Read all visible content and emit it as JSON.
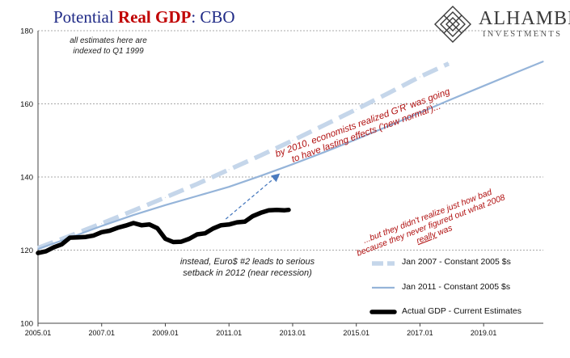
{
  "header": {
    "title_prefix": "Potential",
    "title_highlight": "Real GDP",
    "title_suffix": ":  CBO"
  },
  "brand": {
    "name": "ALHAMBRA",
    "subtitle": "INVESTMENTS",
    "icon": "alhambra-lattice-icon"
  },
  "annotations": {
    "indexed_note": [
      "all estimates here are",
      "indexed to Q1 1999"
    ],
    "setback_note": [
      "instead, Euro$ #2 leads to serious",
      "setback in 2012 (near recession)"
    ],
    "realized_note": [
      "by 2010, economists realized G'R' was going",
      "to have lasting effects ('new normal')..."
    ],
    "didnt_realize_note": [
      "...but they didn't realize just how bad",
      "because they never figured out what 2008"
    ],
    "really_word": "really",
    "was_word": " was"
  },
  "colors": {
    "title_blue": "#1f2a86",
    "title_red": "#c00000",
    "jan2007": "#c5d6ea",
    "jan2011": "#95b4d9",
    "actual": "#000000",
    "annotation_red": "#b01010",
    "arrow": "#4a7bbf"
  },
  "chart_data": {
    "type": "line",
    "xlabel": "",
    "ylabel": "",
    "xlim": [
      2005.0,
      2020.875
    ],
    "ylim": [
      100,
      180
    ],
    "yticks": [
      100,
      120,
      140,
      160,
      180
    ],
    "xticks": [
      {
        "value": 2005.0,
        "label": "2005.01"
      },
      {
        "value": 2007.0,
        "label": "2007.01"
      },
      {
        "value": 2009.0,
        "label": "2009.01"
      },
      {
        "value": 2011.0,
        "label": "2011.01"
      },
      {
        "value": 2013.0,
        "label": "2013.01"
      },
      {
        "value": 2015.0,
        "label": "2015.01"
      },
      {
        "value": 2017.0,
        "label": "2017.01"
      },
      {
        "value": 2019.0,
        "label": "2019.01"
      }
    ],
    "grid": true,
    "legend_position": "bottom-right",
    "series": [
      {
        "name": "Jan 2007 - Constant 2005 $s",
        "style": "dashed",
        "x": [
          2005.0,
          2006.0,
          2007.0,
          2008.0,
          2009.0,
          2010.0,
          2011.0,
          2012.0,
          2013.0,
          2014.0,
          2015.0,
          2016.0,
          2017.0,
          2017.9
        ],
        "y": [
          120.6,
          123.9,
          127.3,
          130.8,
          134.4,
          138.1,
          142.0,
          145.9,
          150.0,
          154.2,
          158.5,
          162.9,
          167.4,
          171.0
        ]
      },
      {
        "name": "Jan 2011 - Constant 2005 $s",
        "style": "solid",
        "x": [
          2005.0,
          2006.0,
          2007.0,
          2008.0,
          2009.0,
          2010.0,
          2011.0,
          2012.0,
          2013.0,
          2014.0,
          2015.0,
          2016.0,
          2017.0,
          2018.0,
          2019.0,
          2020.0,
          2020.875
        ],
        "y": [
          120.3,
          123.4,
          126.6,
          129.6,
          132.3,
          134.8,
          137.3,
          140.3,
          143.5,
          146.8,
          150.3,
          153.9,
          157.6,
          161.3,
          164.9,
          168.5,
          171.6
        ]
      },
      {
        "name": "Actual GDP - Current Estimates",
        "style": "thick",
        "x": [
          2005.0,
          2005.25,
          2005.5,
          2005.75,
          2006.0,
          2006.25,
          2006.5,
          2006.75,
          2007.0,
          2007.25,
          2007.5,
          2007.75,
          2008.0,
          2008.25,
          2008.5,
          2008.75,
          2009.0,
          2009.25,
          2009.5,
          2009.75,
          2010.0,
          2010.25,
          2010.5,
          2010.75,
          2011.0,
          2011.25,
          2011.5,
          2011.75,
          2012.0,
          2012.25,
          2012.5,
          2012.75,
          2012.875
        ],
        "y": [
          119.2,
          119.7,
          120.8,
          121.6,
          123.4,
          123.5,
          123.6,
          124.0,
          124.9,
          125.3,
          126.1,
          126.7,
          127.4,
          126.8,
          127.0,
          126.0,
          123.1,
          122.2,
          122.3,
          123.1,
          124.3,
          124.6,
          125.9,
          126.8,
          127.0,
          127.6,
          127.8,
          129.3,
          130.2,
          130.9,
          131.0,
          130.9,
          131.0
        ]
      }
    ]
  }
}
